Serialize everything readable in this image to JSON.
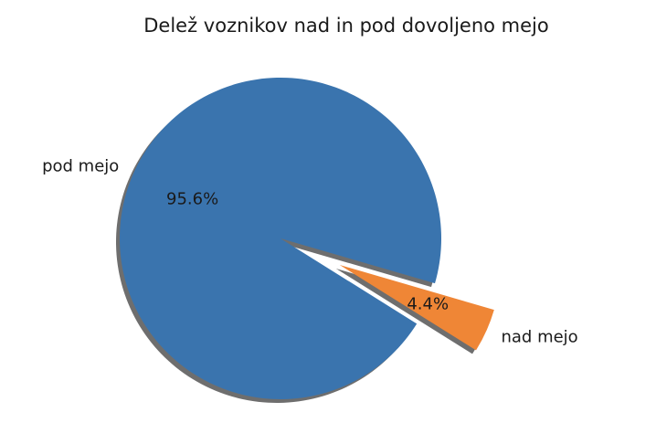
{
  "chart_data": {
    "type": "pie",
    "title": "Delež voznikov nad in pod dovoljeno mejo",
    "slices": [
      {
        "label": "pod mejo",
        "value": 95.6,
        "pct_label": "95.6%",
        "color": "#3a74ae",
        "exploded": false
      },
      {
        "label": "nad mejo",
        "value": 4.4,
        "pct_label": "4.4%",
        "color": "#ef8636",
        "exploded": true
      }
    ],
    "shadow": true
  }
}
